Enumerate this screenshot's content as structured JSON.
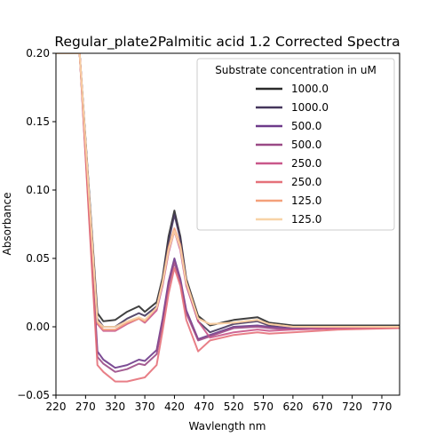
{
  "chart_data": {
    "type": "line",
    "title": "Regular_plate2Palmitic acid 1.2 Corrected Spectra",
    "xlabel": "Wavlength nm",
    "ylabel": "Absorbance",
    "xlim": [
      220,
      800
    ],
    "ylim": [
      -0.05,
      0.2
    ],
    "xticks": [
      220,
      270,
      320,
      370,
      420,
      470,
      520,
      570,
      620,
      670,
      720,
      770
    ],
    "xtick_labels": [
      "220",
      "270",
      "320",
      "370",
      "420",
      "470",
      "520",
      "570",
      "620",
      "670",
      "720",
      "770"
    ],
    "yticks": [
      -0.05,
      0.0,
      0.05,
      0.1,
      0.15,
      0.2
    ],
    "ytick_labels": [
      "−0.05",
      "0.00",
      "0.05",
      "0.10",
      "0.15",
      "0.20"
    ],
    "grid": false,
    "legend": {
      "title": "Substrate concentration in uM",
      "placement": "top-right"
    },
    "series": [
      {
        "name": "1000.0",
        "color": "#2b2b2b",
        "x": [
          220,
          260,
          290,
          300,
          320,
          340,
          360,
          370,
          390,
          400,
          410,
          420,
          430,
          440,
          460,
          480,
          520,
          560,
          580,
          620,
          700,
          800
        ],
        "y": [
          0.2,
          0.2,
          0.01,
          0.004,
          0.005,
          0.011,
          0.015,
          0.011,
          0.018,
          0.036,
          0.066,
          0.085,
          0.066,
          0.035,
          0.008,
          0.001,
          0.005,
          0.007,
          0.003,
          0.001,
          0.001,
          0.001
        ]
      },
      {
        "name": "1000.0",
        "color": "#45365c",
        "x": [
          220,
          260,
          290,
          300,
          320,
          340,
          360,
          370,
          390,
          400,
          410,
          420,
          430,
          440,
          460,
          480,
          520,
          560,
          580,
          620,
          700,
          800
        ],
        "y": [
          0.2,
          0.2,
          0.006,
          0.0,
          0.0,
          0.006,
          0.01,
          0.008,
          0.015,
          0.033,
          0.062,
          0.082,
          0.064,
          0.033,
          0.004,
          -0.004,
          0.002,
          0.004,
          0.001,
          0.0,
          0.0,
          0.0
        ]
      },
      {
        "name": "500.0",
        "color": "#6e3a8a",
        "x": [
          220,
          260,
          290,
          300,
          320,
          340,
          360,
          370,
          390,
          400,
          410,
          420,
          430,
          440,
          460,
          480,
          520,
          560,
          580,
          620,
          700,
          800
        ],
        "y": [
          0.2,
          0.2,
          -0.018,
          -0.024,
          -0.03,
          -0.028,
          -0.024,
          -0.025,
          -0.017,
          0.006,
          0.033,
          0.05,
          0.035,
          0.012,
          -0.009,
          -0.006,
          0.0,
          0.001,
          0.0,
          -0.001,
          0.0,
          0.0
        ]
      },
      {
        "name": "500.0",
        "color": "#9a4a86",
        "x": [
          220,
          260,
          290,
          300,
          320,
          340,
          360,
          370,
          390,
          400,
          410,
          420,
          430,
          440,
          460,
          480,
          520,
          560,
          580,
          620,
          700,
          800
        ],
        "y": [
          0.2,
          0.2,
          -0.022,
          -0.027,
          -0.033,
          -0.031,
          -0.027,
          -0.028,
          -0.02,
          0.003,
          0.03,
          0.047,
          0.032,
          0.01,
          -0.01,
          -0.007,
          -0.001,
          0.0,
          -0.001,
          -0.002,
          -0.001,
          0.0
        ]
      },
      {
        "name": "250.0",
        "color": "#c9578a",
        "x": [
          220,
          260,
          290,
          300,
          320,
          340,
          360,
          370,
          390,
          400,
          410,
          420,
          430,
          440,
          460,
          480,
          520,
          560,
          580,
          620,
          700,
          800
        ],
        "y": [
          0.2,
          0.2,
          0.002,
          -0.003,
          -0.003,
          0.002,
          0.006,
          0.003,
          0.012,
          0.03,
          0.054,
          0.07,
          0.056,
          0.03,
          0.004,
          -0.008,
          -0.004,
          -0.002,
          -0.003,
          -0.002,
          -0.001,
          -0.001
        ]
      },
      {
        "name": "250.0",
        "color": "#e5717a",
        "x": [
          220,
          260,
          290,
          300,
          320,
          340,
          360,
          370,
          390,
          400,
          410,
          420,
          430,
          440,
          460,
          480,
          520,
          560,
          580,
          620,
          700,
          800
        ],
        "y": [
          0.2,
          0.2,
          -0.028,
          -0.033,
          -0.04,
          -0.04,
          -0.038,
          -0.037,
          -0.028,
          -0.003,
          0.024,
          0.043,
          0.03,
          0.005,
          -0.018,
          -0.01,
          -0.006,
          -0.004,
          -0.005,
          -0.004,
          -0.002,
          -0.001
        ]
      },
      {
        "name": "125.0",
        "color": "#f4a07a",
        "x": [
          220,
          260,
          290,
          300,
          320,
          340,
          360,
          370,
          390,
          400,
          410,
          420,
          430,
          440,
          460,
          480,
          520,
          560,
          580,
          620,
          700,
          800
        ],
        "y": [
          0.2,
          0.2,
          0.003,
          -0.002,
          -0.002,
          0.003,
          0.006,
          0.004,
          0.014,
          0.033,
          0.058,
          0.072,
          0.06,
          0.033,
          0.006,
          0.002,
          0.003,
          0.005,
          0.002,
          0.0,
          0.0,
          0.0
        ]
      },
      {
        "name": "125.0",
        "color": "#f8d3a6",
        "x": [
          220,
          260,
          290,
          300,
          320,
          340,
          360,
          370,
          390,
          400,
          410,
          420,
          430,
          440,
          460,
          480,
          520,
          560,
          580,
          620,
          700,
          800
        ],
        "y": [
          0.2,
          0.2,
          0.004,
          0.0,
          0.0,
          0.004,
          0.007,
          0.005,
          0.014,
          0.032,
          0.056,
          0.07,
          0.058,
          0.032,
          0.006,
          0.002,
          0.003,
          0.005,
          0.002,
          0.0,
          0.0,
          0.0
        ]
      }
    ]
  }
}
